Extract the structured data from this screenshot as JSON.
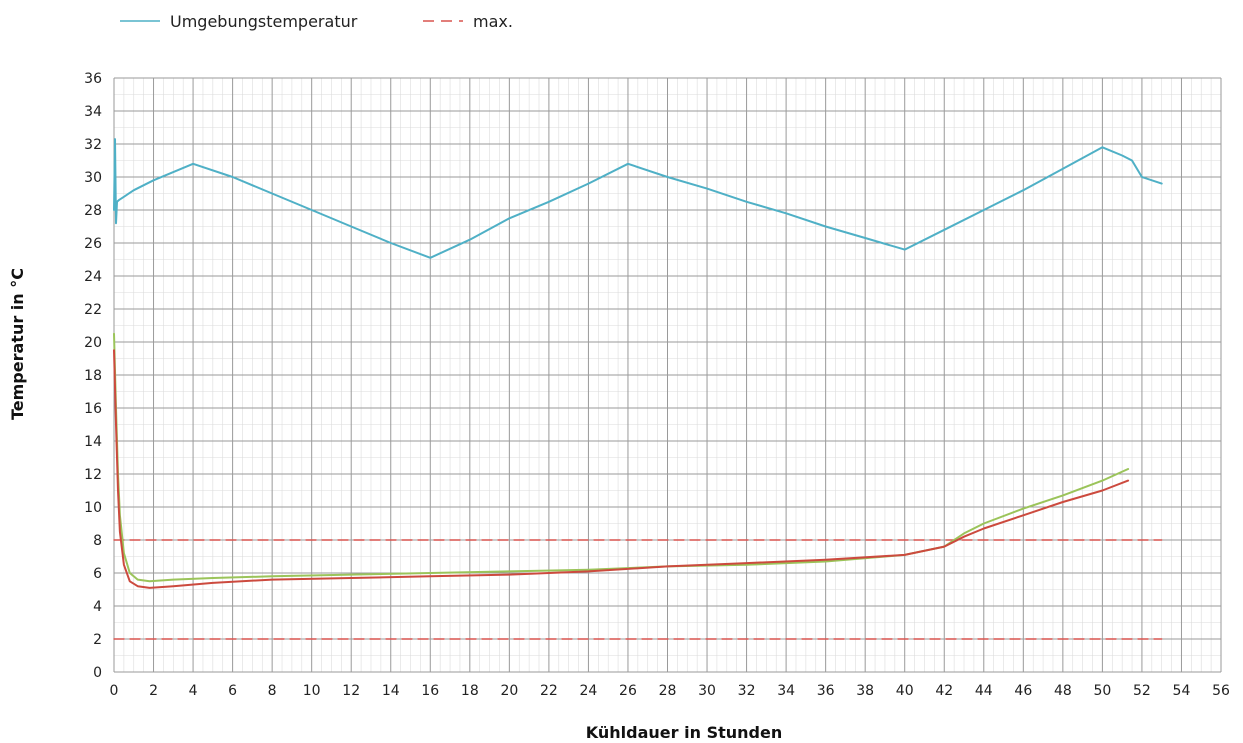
{
  "chart_data": {
    "type": "line",
    "xlabel": "Kühldauer in Stunden",
    "ylabel": "Temperatur in °C",
    "xlim": [
      0,
      56
    ],
    "ylim": [
      0,
      36
    ],
    "x_ticks": [
      0,
      2,
      4,
      6,
      8,
      10,
      12,
      14,
      16,
      18,
      20,
      22,
      24,
      26,
      28,
      30,
      32,
      34,
      36,
      38,
      40,
      42,
      44,
      46,
      48,
      50,
      52,
      54,
      56
    ],
    "y_ticks": [
      0,
      2,
      4,
      6,
      8,
      10,
      12,
      14,
      16,
      18,
      20,
      22,
      24,
      26,
      28,
      30,
      32,
      34,
      36
    ],
    "grid": true,
    "minor_grid": true,
    "legend_position": "top-left",
    "colors": {
      "ambient": "#4fb0c6",
      "limit": "#d9534f",
      "green": "#9bc45a",
      "red": "#cc4a3e",
      "major_grid": "#9a9a9a",
      "minor_grid": "#dcdcdc"
    },
    "legend": [
      {
        "label": "Umgebungstemperatur",
        "style": "solid",
        "color": "#4fb0c6"
      },
      {
        "label": "max.",
        "style": "dashed",
        "color": "#d9534f"
      }
    ],
    "series": [
      {
        "name": "Umgebungstemperatur",
        "color": "#4fb0c6",
        "style": "solid",
        "x": [
          0,
          0.05,
          0.1,
          0.15,
          0.25,
          0.5,
          1,
          2,
          3,
          4,
          6,
          8,
          10,
          12,
          14,
          16,
          18,
          20,
          22,
          24,
          26,
          28,
          30,
          32,
          34,
          36,
          38,
          40,
          42,
          44,
          46,
          48,
          50,
          51,
          51.5,
          52,
          53
        ],
        "y": [
          28.0,
          32.3,
          27.2,
          28.5,
          28.6,
          28.8,
          29.2,
          29.8,
          30.3,
          30.8,
          30.0,
          29.0,
          28.0,
          27.0,
          26.0,
          25.1,
          26.2,
          27.5,
          28.5,
          29.6,
          30.8,
          30.0,
          29.3,
          28.5,
          27.8,
          27.0,
          26.3,
          25.6,
          26.8,
          28.0,
          29.2,
          30.5,
          31.8,
          31.3,
          31.0,
          30.0,
          29.6
        ]
      },
      {
        "name": "",
        "color": "#d9534f",
        "style": "dashed",
        "x": [
          0,
          53
        ],
        "y": [
          8,
          8
        ]
      },
      {
        "name": "",
        "color": "#d9534f",
        "style": "dashed",
        "x": [
          0,
          53
        ],
        "y": [
          2,
          2
        ]
      },
      {
        "name": "",
        "color": "#9bc45a",
        "style": "solid",
        "x": [
          0,
          0.1,
          0.2,
          0.3,
          0.5,
          0.8,
          1.2,
          1.8,
          3,
          5,
          8,
          12,
          16,
          20,
          24,
          28,
          32,
          36,
          40,
          42,
          43,
          44,
          46,
          48,
          50,
          51.3
        ],
        "y": [
          20.5,
          16.0,
          12.0,
          9.5,
          7.2,
          6.0,
          5.6,
          5.5,
          5.6,
          5.7,
          5.8,
          5.9,
          6.0,
          6.1,
          6.2,
          6.4,
          6.5,
          6.7,
          7.1,
          7.6,
          8.4,
          9.0,
          9.9,
          10.7,
          11.6,
          12.3
        ]
      },
      {
        "name": "",
        "color": "#cc4a3e",
        "style": "solid",
        "x": [
          0,
          0.1,
          0.2,
          0.3,
          0.5,
          0.8,
          1.2,
          1.8,
          3,
          5,
          8,
          12,
          16,
          20,
          24,
          28,
          32,
          36,
          40,
          42,
          43,
          44,
          46,
          48,
          50,
          51.3
        ],
        "y": [
          19.5,
          15.0,
          11.0,
          8.5,
          6.5,
          5.5,
          5.2,
          5.1,
          5.2,
          5.4,
          5.6,
          5.7,
          5.8,
          5.9,
          6.1,
          6.4,
          6.6,
          6.8,
          7.1,
          7.6,
          8.2,
          8.7,
          9.5,
          10.3,
          11.0,
          11.6
        ]
      }
    ]
  }
}
